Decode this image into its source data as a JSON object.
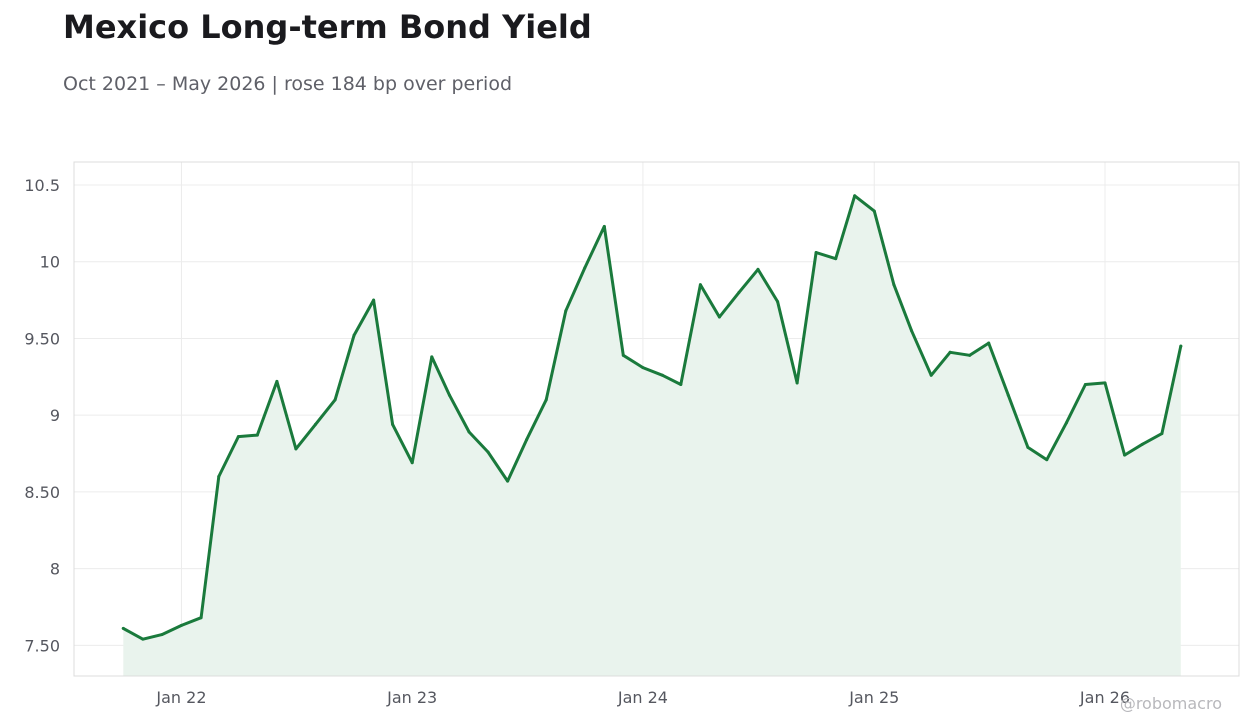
{
  "header": {
    "title": "Mexico Long-term Bond Yield",
    "subtitle": "Oct 2021 – May 2026 | rose 184 bp over period"
  },
  "watermark": "@robomacro",
  "colors": {
    "line": "#1a7a3c",
    "fill": "#e9f3ed",
    "grid": "#ececec",
    "axis_text": "#55575f",
    "frame": "#dcdcdc"
  },
  "chart_data": {
    "type": "area",
    "title": "Mexico Long-term Bond Yield",
    "subtitle": "Oct 2021 – May 2026 | rose 184 bp over period",
    "xlabel": "",
    "ylabel": "",
    "grid": true,
    "ylim": [
      7.3,
      10.65
    ],
    "xlim": [
      "2021-07-15",
      "2026-08-01"
    ],
    "yticks": [
      7.5,
      8,
      8.5,
      9,
      9.5,
      10,
      10.5
    ],
    "ytick_labels": [
      "7.50",
      "8",
      "8.50",
      "9",
      "9.50",
      "10",
      "10.5"
    ],
    "xticks": [
      "2022-01-01",
      "2023-01-01",
      "2024-01-01",
      "2025-01-01",
      "2026-01-01"
    ],
    "xtick_labels": [
      "Jan 22",
      "Jan 23",
      "Jan 24",
      "Jan 25",
      "Jan 26"
    ],
    "series": [
      {
        "x": [
          "2021-10-01",
          "2021-11-01",
          "2021-12-01",
          "2022-01-01",
          "2022-02-01",
          "2022-03-01",
          "2022-04-01",
          "2022-05-01",
          "2022-06-01",
          "2022-07-01",
          "2022-08-01",
          "2022-09-01",
          "2022-10-01",
          "2022-11-01",
          "2022-12-01",
          "2023-01-01",
          "2023-02-01",
          "2023-03-01",
          "2023-04-01",
          "2023-05-01",
          "2023-06-01",
          "2023-07-01",
          "2023-08-01",
          "2023-09-01",
          "2023-10-01",
          "2023-11-01",
          "2023-12-01",
          "2024-01-01",
          "2024-02-01",
          "2024-03-01",
          "2024-04-01",
          "2024-05-01",
          "2024-06-01",
          "2024-07-01",
          "2024-08-01",
          "2024-09-01",
          "2024-10-01",
          "2024-11-01",
          "2024-12-01",
          "2025-01-01",
          "2025-02-01",
          "2025-03-01",
          "2025-04-01",
          "2025-05-01",
          "2025-06-01",
          "2025-07-01",
          "2025-08-01",
          "2025-09-01",
          "2025-10-01",
          "2025-11-01",
          "2025-12-01",
          "2026-01-01",
          "2026-02-01",
          "2026-03-01",
          "2026-04-01",
          "2026-05-01"
        ],
        "values": [
          7.61,
          7.54,
          7.57,
          7.63,
          7.68,
          8.6,
          8.86,
          8.87,
          9.22,
          8.78,
          8.94,
          9.1,
          9.52,
          9.75,
          8.94,
          8.69,
          9.38,
          9.13,
          8.89,
          8.76,
          8.57,
          8.84,
          9.1,
          9.68,
          9.96,
          10.23,
          9.39,
          9.31,
          9.26,
          9.2,
          9.85,
          9.64,
          9.8,
          9.95,
          9.74,
          9.21,
          10.06,
          10.02,
          10.43,
          10.33,
          9.85,
          9.55,
          9.26,
          9.41,
          9.39,
          9.47,
          9.13,
          8.79,
          8.71,
          8.95,
          9.2,
          9.21,
          8.74,
          8.81,
          8.88,
          9.45
        ]
      }
    ]
  }
}
